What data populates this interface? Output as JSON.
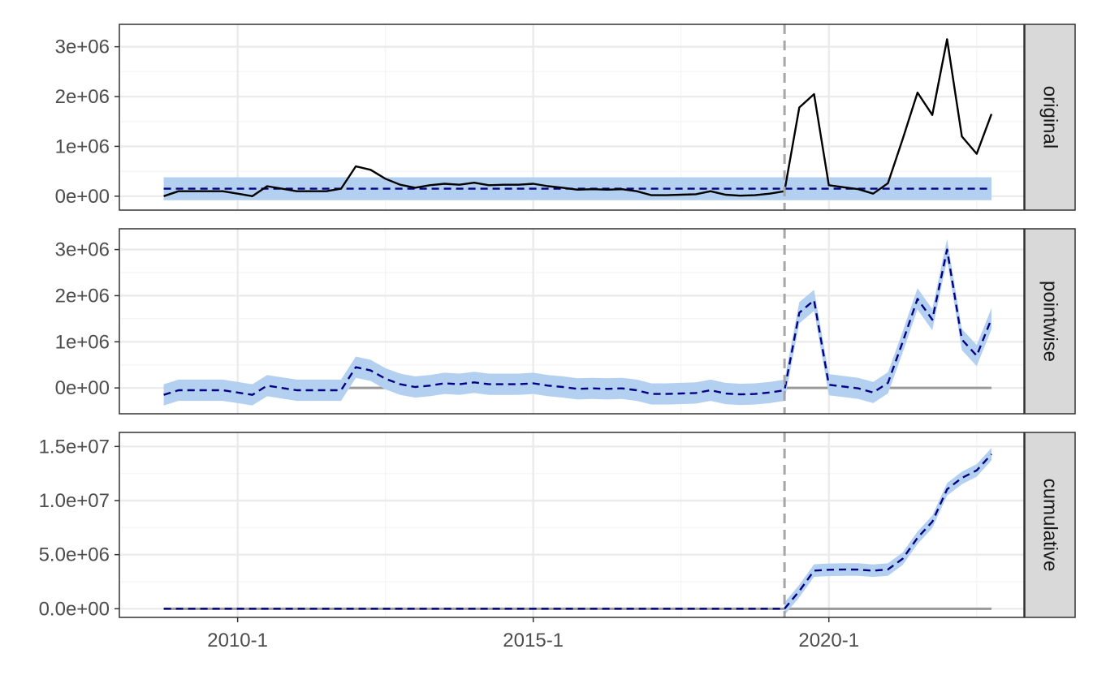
{
  "chart_data": {
    "type": "line",
    "x_axis": {
      "ticks": [
        "2010-1",
        "2015-1",
        "2020-1"
      ],
      "tick_values": [
        2010.0,
        2015.0,
        2020.0
      ],
      "range": [
        2008.0,
        2023.3
      ]
    },
    "intervention_x": 2019.25,
    "x": [
      2008.75,
      2009.0,
      2009.25,
      2009.5,
      2009.75,
      2010.0,
      2010.25,
      2010.5,
      2010.75,
      2011.0,
      2011.25,
      2011.5,
      2011.75,
      2012.0,
      2012.25,
      2012.5,
      2012.75,
      2013.0,
      2013.25,
      2013.5,
      2013.75,
      2014.0,
      2014.25,
      2014.5,
      2014.75,
      2015.0,
      2015.25,
      2015.5,
      2015.75,
      2016.0,
      2016.25,
      2016.5,
      2016.75,
      2017.0,
      2017.25,
      2017.5,
      2017.75,
      2018.0,
      2018.25,
      2018.5,
      2018.75,
      2019.0,
      2019.25,
      2019.5,
      2019.75,
      2020.0,
      2020.25,
      2020.5,
      2020.75,
      2021.0,
      2021.25,
      2021.5,
      2021.75,
      2022.0,
      2022.25,
      2022.5,
      2022.75
    ],
    "panels": [
      {
        "strip": "original",
        "y_ticks": [
          "0e+00",
          "1e+06",
          "2e+06",
          "3e+06"
        ],
        "y_tick_values": [
          0,
          1000000,
          2000000,
          3000000
        ],
        "ylim": [
          -280000,
          3450000
        ],
        "observed": [
          0,
          100000,
          100000,
          100000,
          100000,
          50000,
          0,
          200000,
          150000,
          100000,
          100000,
          100000,
          150000,
          600000,
          530000,
          350000,
          230000,
          170000,
          220000,
          250000,
          230000,
          270000,
          220000,
          230000,
          230000,
          250000,
          200000,
          170000,
          130000,
          140000,
          130000,
          140000,
          100000,
          20000,
          20000,
          30000,
          40000,
          100000,
          30000,
          10000,
          20000,
          50000,
          100000,
          1780000,
          2050000,
          220000,
          180000,
          140000,
          50000,
          260000,
          1150000,
          2080000,
          1630000,
          3150000,
          1200000,
          850000,
          1650000
        ],
        "predicted": 150000,
        "band": [
          -80000,
          380000
        ]
      },
      {
        "strip": "pointwise",
        "y_ticks": [
          "0e+00",
          "1e+06",
          "2e+06",
          "3e+06"
        ],
        "y_tick_values": [
          0,
          1000000,
          2000000,
          3000000
        ],
        "ylim": [
          -560000,
          3450000
        ],
        "zero_line": 0,
        "effect": [
          -150000,
          -50000,
          -50000,
          -50000,
          -50000,
          -100000,
          -150000,
          50000,
          0,
          -50000,
          -50000,
          -50000,
          -50000,
          450000,
          380000,
          200000,
          80000,
          20000,
          50000,
          100000,
          80000,
          120000,
          80000,
          80000,
          80000,
          100000,
          50000,
          20000,
          -20000,
          -10000,
          -20000,
          -10000,
          -50000,
          -130000,
          -130000,
          -120000,
          -110000,
          -50000,
          -120000,
          -140000,
          -130000,
          -100000,
          -50000,
          1630000,
          1900000,
          70000,
          30000,
          -10000,
          -100000,
          110000,
          1000000,
          1930000,
          1480000,
          3000000,
          1050000,
          700000,
          1500000
        ],
        "band_halfwidth": 230000
      },
      {
        "strip": "cumulative",
        "y_ticks": [
          "0.0e+00",
          "5.0e+06",
          "1.0e+07",
          "1.5e+07"
        ],
        "y_tick_values": [
          0,
          5000000,
          10000000,
          15000000
        ],
        "ylim": [
          -800000,
          16300000
        ],
        "zero_line": 0,
        "effect_x_start": 2019.25,
        "effect": [
          0,
          1630000,
          3530000,
          3600000,
          3630000,
          3620000,
          3520000,
          3630000,
          4630000,
          6560000,
          8040000,
          11040000,
          12090000,
          12790000,
          14290000
        ],
        "band_halfwidth": 580000
      }
    ],
    "colors": {
      "band": "#b4d0f1",
      "mean_line": "#000080",
      "observed_line": "#000000",
      "reference_line": "#999999",
      "intervention_line": "#a6a6a6",
      "strip_fill": "#d9d9d9",
      "grid_major": "#ebebeb",
      "grid_minor": "#f4f4f4"
    }
  }
}
